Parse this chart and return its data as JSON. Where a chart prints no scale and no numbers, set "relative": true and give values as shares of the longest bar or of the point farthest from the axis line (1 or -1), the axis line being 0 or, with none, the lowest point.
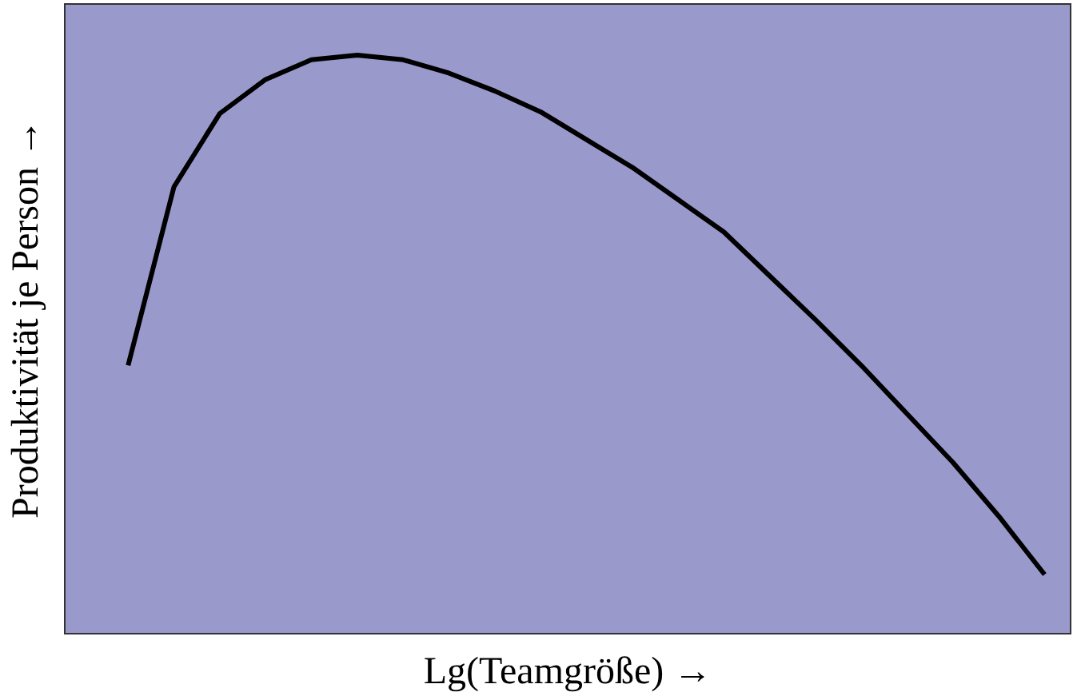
{
  "chart_data": {
    "type": "line",
    "relative": true,
    "xlabel": "Lg(Teamgröße) →",
    "ylabel": "Produktivität je Person →",
    "categories": [
      null,
      null,
      null,
      null,
      null,
      null,
      null,
      null,
      null,
      null,
      null,
      null,
      null,
      null,
      null,
      null,
      null,
      null,
      null,
      null,
      null
    ],
    "series": [
      {
        "color": "#000000",
        "values": [
          0.463,
          0.772,
          0.899,
          0.958,
          0.992,
          1.0,
          0.992,
          0.969,
          0.938,
          0.902,
          0.854,
          0.806,
          0.75,
          0.694,
          0.618,
          0.542,
          0.463,
          0.379,
          0.295,
          0.202,
          0.101
        ]
      }
    ],
    "grid": false,
    "legend": false,
    "marker": "none",
    "line_style": "solid"
  }
}
